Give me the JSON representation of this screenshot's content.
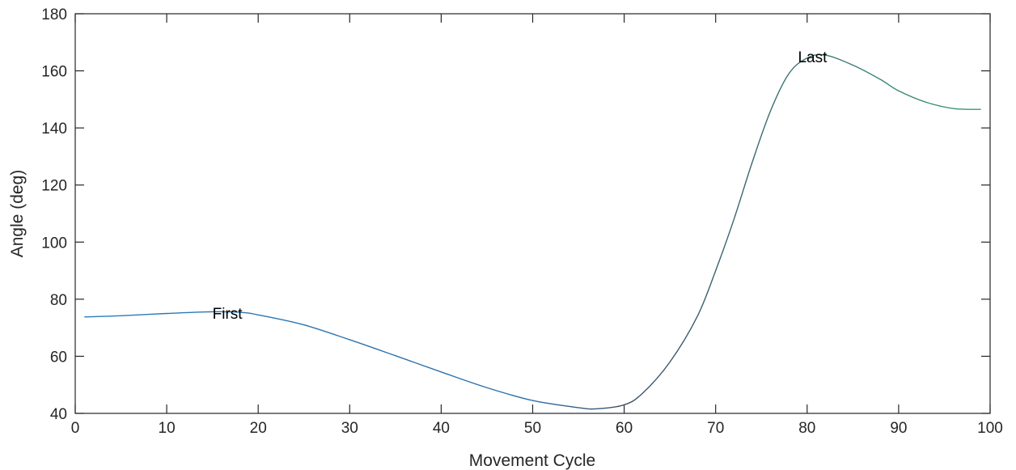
{
  "chart_data": {
    "type": "line",
    "title": "",
    "xlabel": "Movement Cycle",
    "ylabel": "Angle (deg)",
    "xlim": [
      0,
      100
    ],
    "ylim": [
      40,
      180
    ],
    "xticks": [
      0,
      10,
      20,
      30,
      40,
      50,
      60,
      70,
      80,
      90,
      100
    ],
    "yticks": [
      40,
      60,
      80,
      100,
      120,
      140,
      160,
      180
    ],
    "grid": false,
    "legend": "none",
    "colors": {
      "start": "#2b7bb9",
      "mid": "#3a4f6a",
      "end": "#3a9a7a",
      "axis": "#262626"
    },
    "series": [
      {
        "x": [
          1,
          5,
          10,
          15,
          18,
          20,
          25,
          30,
          35,
          40,
          45,
          50,
          55,
          57,
          60,
          62,
          65,
          68,
          70,
          72,
          74,
          76,
          78,
          80,
          82,
          85,
          88,
          90,
          93,
          96,
          99
        ],
        "y": [
          73.8,
          74.2,
          75.0,
          75.6,
          75.4,
          74.5,
          71.0,
          65.8,
          60.2,
          54.5,
          49.0,
          44.5,
          42.0,
          41.6,
          43.0,
          47.0,
          58.0,
          74.0,
          90.0,
          108.0,
          128.0,
          146.0,
          159.0,
          164.5,
          165.5,
          162.0,
          157.0,
          153.0,
          149.0,
          146.8,
          146.5
        ]
      }
    ],
    "annotations": [
      {
        "text": "First",
        "x": 15,
        "y": 75.2
      },
      {
        "text": "Last",
        "x": 79,
        "y": 165
      }
    ]
  }
}
